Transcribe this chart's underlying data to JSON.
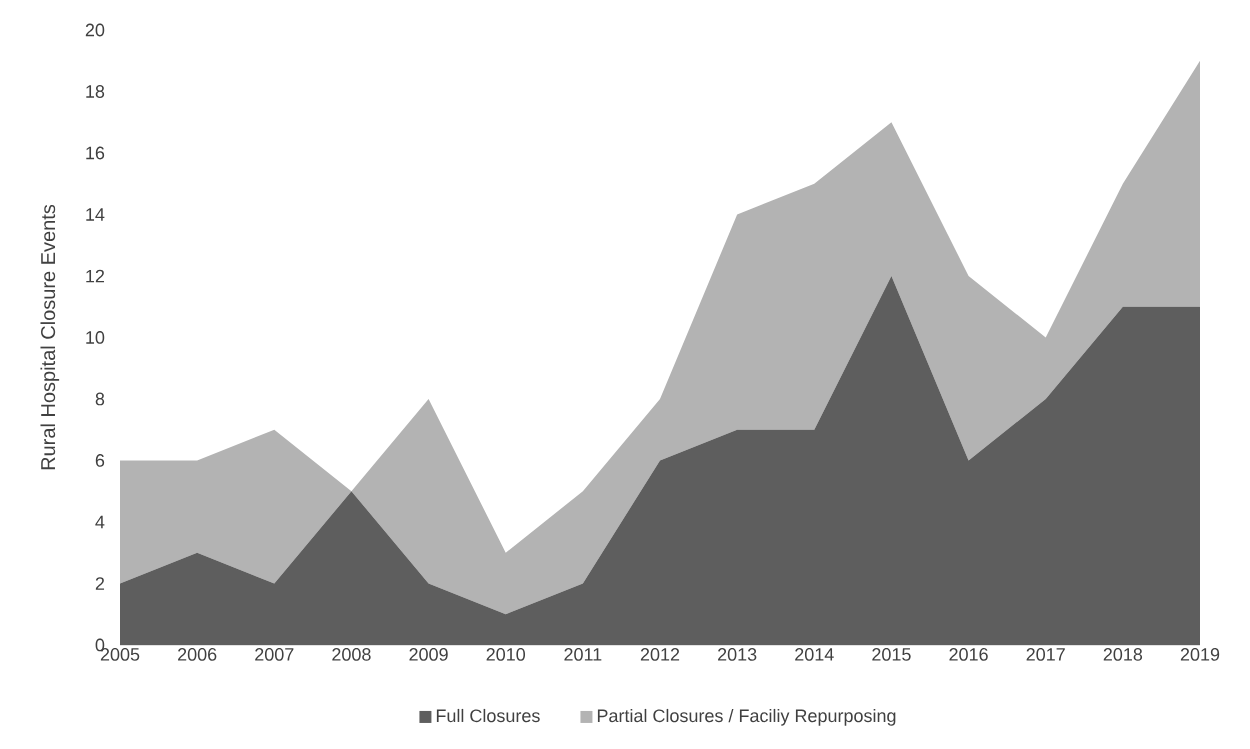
{
  "chart_data": {
    "type": "area",
    "stacked": true,
    "ylabel": "Rural Hospital Closure Events",
    "categories": [
      "2005",
      "2006",
      "2007",
      "2008",
      "2009",
      "2010",
      "2011",
      "2012",
      "2013",
      "2014",
      "2015",
      "2016",
      "2017",
      "2018",
      "2019"
    ],
    "series": [
      {
        "name": "Full Closures",
        "color": "#5e5e5e",
        "values": [
          2,
          3,
          2,
          5,
          2,
          1,
          2,
          6,
          7,
          7,
          12,
          6,
          8,
          11,
          11
        ]
      },
      {
        "name": "Partial Closures / Faciliy Repurposing",
        "color": "#b3b3b3",
        "values": [
          4,
          3,
          5,
          0,
          6,
          2,
          3,
          2,
          7,
          8,
          5,
          6,
          2,
          4,
          8
        ]
      }
    ],
    "ylim": [
      0,
      20
    ],
    "yticks": [
      0,
      2,
      4,
      6,
      8,
      10,
      12,
      14,
      16,
      18,
      20
    ],
    "legend": "bottom"
  }
}
